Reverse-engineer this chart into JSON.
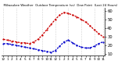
{
  "title": "  Milwaukee Weather  Outdoor Temperature (vs)  Dew Point  (Last 24 Hours)",
  "temp_color": "#cc0000",
  "dew_color": "#0000cc",
  "background": "#ffffff",
  "grid_color": "#888888",
  "temp_values": [
    27,
    26,
    25,
    24,
    23,
    23,
    22,
    24,
    27,
    32,
    38,
    44,
    50,
    55,
    58,
    57,
    55,
    53,
    50,
    47,
    43,
    38,
    34,
    30
  ],
  "dew_values": [
    22,
    22,
    21,
    20,
    19,
    18,
    17,
    16,
    15,
    14,
    13,
    12,
    14,
    19,
    24,
    26,
    23,
    20,
    18,
    17,
    17,
    19,
    22,
    24
  ],
  "x_labels": [
    "12",
    "1",
    "2",
    "3",
    "4",
    "5",
    "6",
    "7",
    "8",
    "9",
    "10",
    "11",
    "12",
    "1",
    "2",
    "3",
    "4",
    "5",
    "6",
    "7",
    "8",
    "9",
    "10",
    "11"
  ],
  "ylim": [
    8,
    63
  ],
  "ytick_values": [
    10,
    20,
    30,
    40,
    50,
    60
  ],
  "ytick_labels": [
    "10",
    "20",
    "30",
    "40",
    "50",
    "60"
  ],
  "ylabel_fontsize": 3.8,
  "xlabel_fontsize": 3.0,
  "title_fontsize": 2.8,
  "linewidth": 0.9,
  "markersize": 1.2,
  "vgrid_x": [
    0,
    3,
    6,
    9,
    12,
    15,
    18,
    21,
    23
  ],
  "figsize": [
    1.6,
    0.87
  ],
  "dpi": 100
}
